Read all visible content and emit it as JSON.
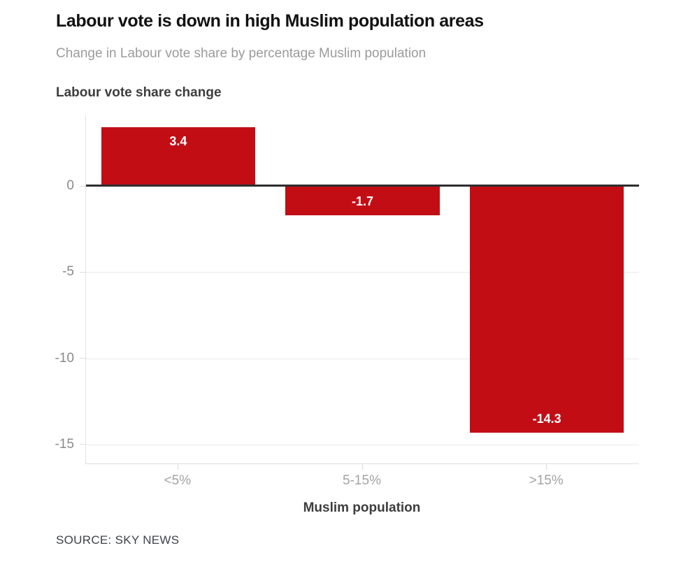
{
  "header": {
    "title": "Labour vote is down in high Muslim population areas",
    "subtitle": "Change in Labour vote share by percentage Muslim population"
  },
  "footer": {
    "source": "SOURCE: SKY NEWS"
  },
  "colors": {
    "bar": "#c20d15",
    "bar_label": "#ffffff",
    "zero_line": "#2e2e2e",
    "gridline": "#e9e9e9",
    "y_tick_label": "#8a8a8a",
    "x_tick_label": "#a3a3a3",
    "title": "#121212",
    "subtitle": "#9b9b9b"
  },
  "chart_data": {
    "type": "bar",
    "title": "Labour vote share change",
    "xlabel": "Muslim population",
    "ylabel": "Labour vote share change",
    "categories": [
      "<5%",
      "5-15%",
      ">15%"
    ],
    "values": [
      3.4,
      -1.7,
      -14.3
    ],
    "value_labels": [
      "3.4",
      "-1.7",
      "-14.3"
    ],
    "yticks": [
      0,
      -5,
      -10,
      -15
    ],
    "ylim": [
      -16.1,
      4.1
    ],
    "grid": "horizontal",
    "legend": "none",
    "bar_width_fraction": 0.835
  }
}
